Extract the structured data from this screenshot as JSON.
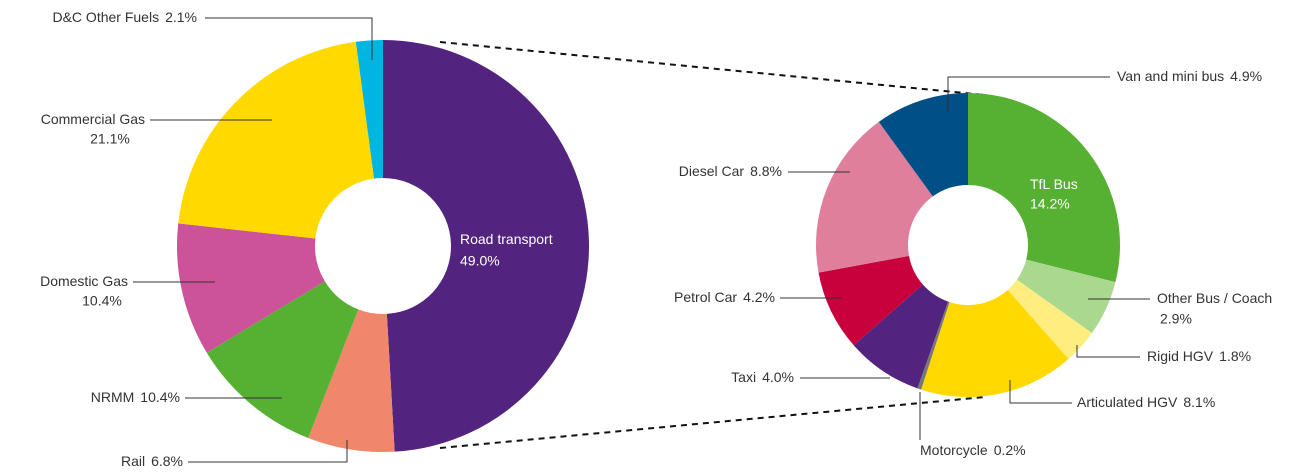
{
  "chart_data": [
    {
      "type": "pie",
      "categories": [
        "Road transport",
        "Rail",
        "NRMM",
        "Domestic Gas",
        "Commercial Gas",
        "D&C Other Fuels"
      ],
      "values": [
        49.0,
        6.8,
        10.4,
        10.4,
        21.1,
        2.1
      ],
      "value_labels": [
        "49.0%",
        "6.8%",
        "10.4%",
        "10.4%",
        "21.1%",
        "2.1%"
      ],
      "colors": [
        "#52237f",
        "#f0866a",
        "#56b031",
        "#cc5399",
        "#ffd900",
        "#00b5e2"
      ]
    },
    {
      "type": "pie",
      "categories": [
        "TfL Bus",
        "Other  Bus / Coach",
        "Rigid HGV",
        "Articulated HGV",
        "Motorcycle",
        "Taxi",
        "Petrol Car",
        "Diesel Car",
        "Van and mini bus"
      ],
      "values": [
        14.2,
        2.9,
        1.8,
        8.1,
        0.2,
        4.0,
        4.2,
        8.8,
        4.9
      ],
      "value_labels": [
        "14.2%",
        "2.9%",
        "1.8%",
        "8.1%",
        "0.2%",
        "4.0%",
        "4.2%",
        "8.8%",
        "4.9%"
      ],
      "colors": [
        "#56b031",
        "#abd88f",
        "#ffed7f",
        "#ffd900",
        "#777777",
        "#52237f",
        "#c8003c",
        "#e07f9c",
        "#004f86"
      ]
    }
  ]
}
